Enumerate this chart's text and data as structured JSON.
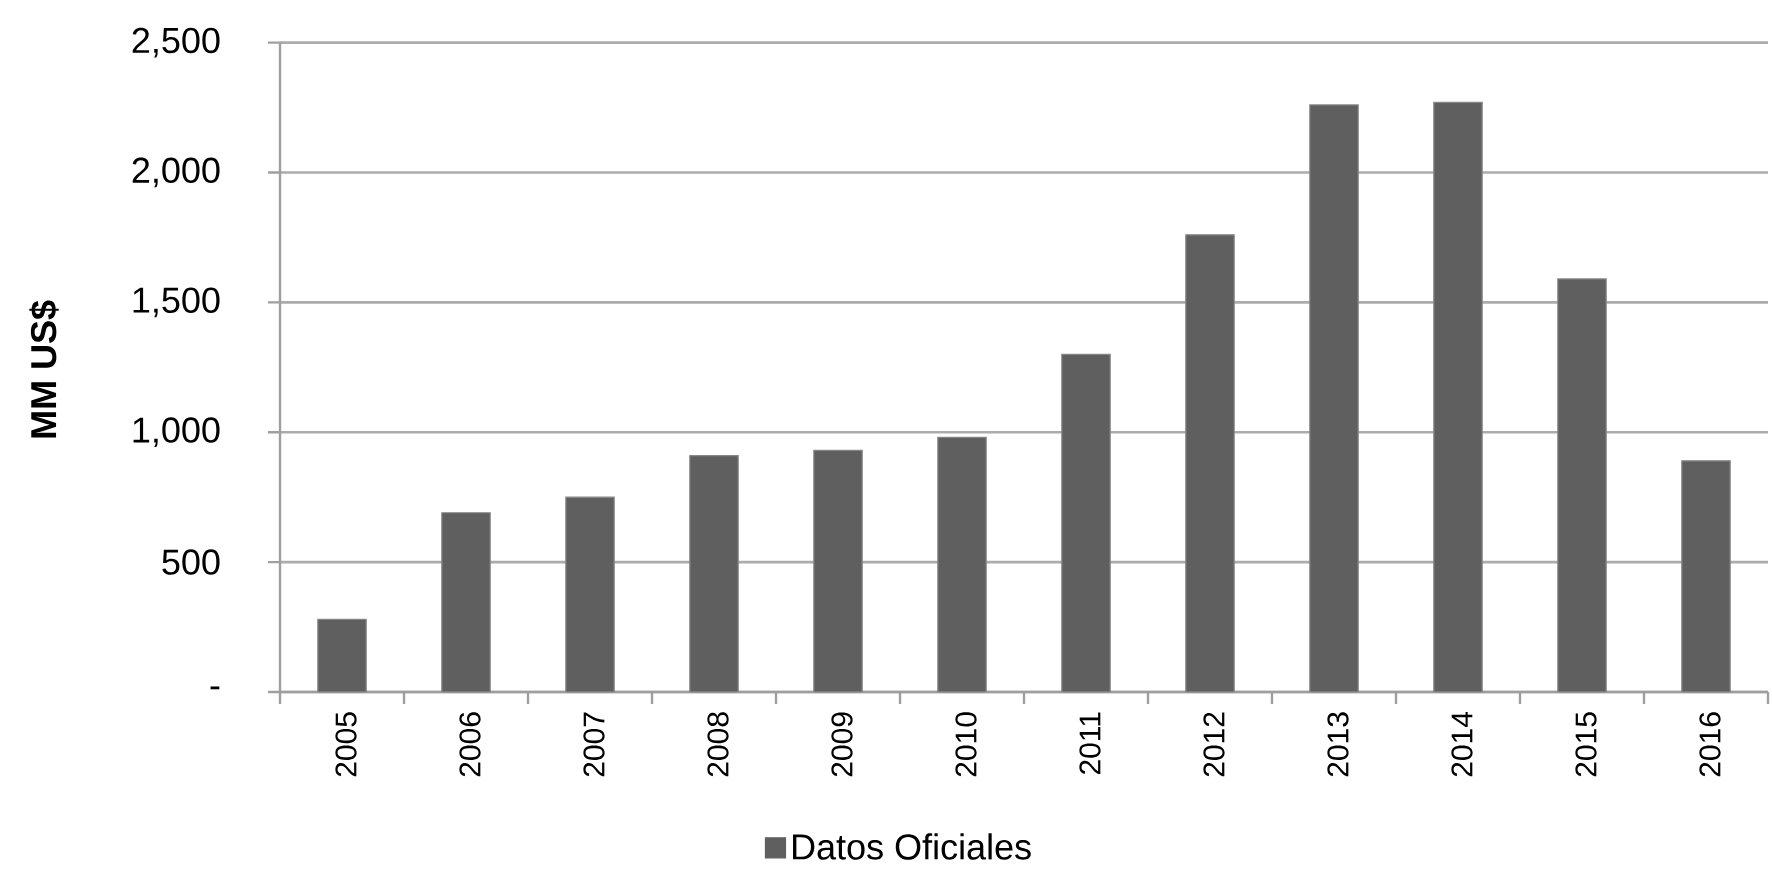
{
  "chart_data": {
    "type": "bar",
    "ylabel": "MM US$",
    "categories": [
      "2005",
      "2006",
      "2007",
      "2008",
      "2009",
      "2010",
      "2011",
      "2012",
      "2013",
      "2014",
      "2015",
      "2016"
    ],
    "series": [
      {
        "name": "Datos Oficiales",
        "color": "#5f5f5f",
        "values": [
          280,
          690,
          750,
          910,
          930,
          980,
          1300,
          1760,
          2260,
          2270,
          1590,
          890
        ]
      }
    ],
    "ylim": [
      0,
      2500
    ],
    "yticks": [
      {
        "value": 0,
        "label": "-"
      },
      500,
      {
        "value": 1000,
        "label": "1,000"
      },
      {
        "value": 1500,
        "label": "1,500"
      },
      {
        "value": 2000,
        "label": "2,000"
      },
      {
        "value": 2500,
        "label": "2,500"
      }
    ],
    "grid": "y",
    "legend": "bottom"
  }
}
